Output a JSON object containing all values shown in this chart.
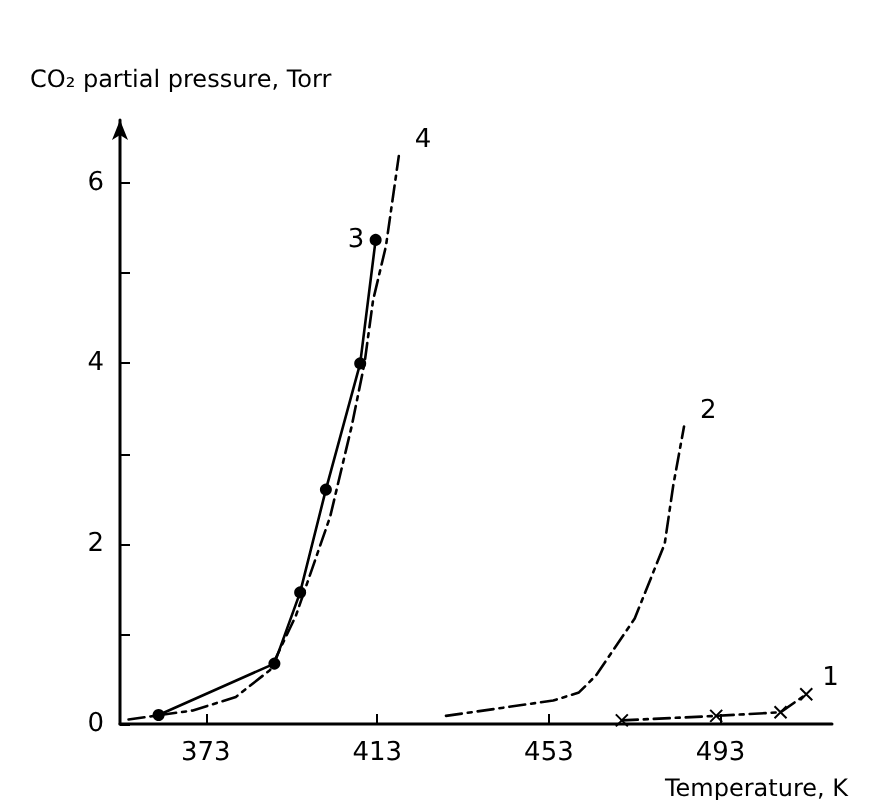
{
  "chart_data": {
    "type": "line",
    "xlabel": "Temperature, K",
    "ylabel": "CO₂ partial pressure, Torr",
    "xlim": [
      353,
      519
    ],
    "xticks": [
      373,
      413,
      453,
      493
    ],
    "ylim": [
      0,
      6.7
    ],
    "yticks": [
      0,
      {
        "value": 1,
        "label": null
      },
      2,
      {
        "value": 3,
        "label": null
      },
      4,
      {
        "value": 5,
        "label": null
      },
      6
    ],
    "grid": false,
    "legend": false,
    "series": [
      {
        "name": "1",
        "color": "#000000",
        "marker": "cross",
        "line_style": "dashed",
        "x": [
          470,
          492,
          507,
          513
        ],
        "values": [
          0.04,
          0.09,
          0.13,
          0.33
        ]
      },
      {
        "name": "2",
        "color": "#000000",
        "marker": "none",
        "line_style": "dashed",
        "x": [
          429,
          454,
          460,
          464,
          473,
          480,
          482,
          484.5
        ],
        "values": [
          0.09,
          0.26,
          0.35,
          0.54,
          1.17,
          2.0,
          2.65,
          3.3
        ]
      },
      {
        "name": "3",
        "color": "#000000",
        "marker": "circle",
        "line_style": "solid",
        "x": [
          362,
          389,
          395,
          401,
          409,
          412.6
        ],
        "values": [
          0.1,
          0.67,
          1.46,
          2.6,
          4.0,
          5.37
        ]
      },
      {
        "name": "4",
        "color": "#000000",
        "marker": "none",
        "line_style": "dashed",
        "x": [
          355,
          370,
          380,
          388,
          394,
          402,
          407,
          410,
          412,
          415,
          418
        ],
        "values": [
          0.05,
          0.15,
          0.3,
          0.6,
          1.2,
          2.3,
          3.3,
          4.0,
          4.7,
          5.3,
          6.3
        ]
      }
    ]
  }
}
